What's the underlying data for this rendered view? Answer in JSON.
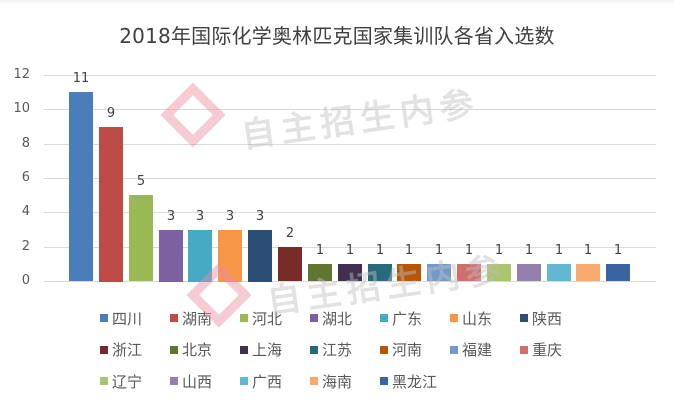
{
  "chart_data": {
    "type": "bar",
    "title": "2018年国际化学奥林匹克国家集训队各省入选数",
    "xlabel": "",
    "ylabel": "",
    "ylim": [
      0,
      12
    ],
    "yticks": [
      0,
      2,
      4,
      6,
      8,
      10,
      12
    ],
    "grid": true,
    "legend_position": "bottom",
    "categories": [
      "四川",
      "湖南",
      "河北",
      "湖北",
      "广东",
      "山东",
      "陕西",
      "浙江",
      "北京",
      "上海",
      "江苏",
      "河南",
      "福建",
      "重庆",
      "辽宁",
      "山西",
      "广西",
      "海南",
      "黑龙江"
    ],
    "values": [
      11,
      9,
      5,
      3,
      3,
      3,
      3,
      2,
      1,
      1,
      1,
      1,
      1,
      1,
      1,
      1,
      1,
      1,
      1
    ],
    "colors": [
      "#4a7ebb",
      "#be4b48",
      "#98b954",
      "#7d60a0",
      "#46aac5",
      "#f79646",
      "#2c4d75",
      "#772c2a",
      "#5f7530",
      "#403152",
      "#276a7c",
      "#b65708",
      "#729aca",
      "#d0706d",
      "#a9c56f",
      "#9281ad",
      "#62b8d1",
      "#f9a96c",
      "#3a64a0"
    ],
    "data_labels": true
  },
  "watermark": {
    "text": "自主招生内参"
  }
}
